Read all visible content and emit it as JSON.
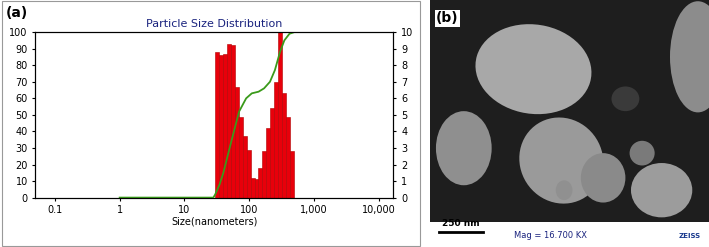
{
  "chart_data": {
    "type": "bar",
    "title": "Particle Size Distribution",
    "x_label": "Size(nanometers)",
    "annotations": [
      "(a)"
    ],
    "log": "x",
    "grid": false,
    "color": "#e8000b",
    "bins": [
      30,
      34.5,
      39.7,
      45.6,
      52.5,
      60.3,
      69.4,
      79.8,
      91.8,
      105.5,
      121.4,
      139.6,
      160.5,
      184.6,
      212.3,
      244.1,
      280.7,
      322.8,
      371.3,
      427,
      491
    ],
    "values": [
      88,
      86,
      87,
      93,
      92,
      67,
      49,
      37,
      29,
      12,
      11,
      18,
      28,
      42,
      54,
      70,
      100,
      63,
      49,
      28
    ],
    "series": [
      {
        "type": "line",
        "color": "#3a9a1a",
        "x": [
          1,
          10,
          28,
          30,
          35,
          40,
          50,
          60,
          70,
          90,
          110,
          140,
          170,
          210,
          250,
          300,
          350,
          420,
          500,
          1000,
          10000
        ],
        "values": [
          0,
          0,
          0,
          2,
          8,
          15,
          30,
          42,
          52,
          60,
          63,
          64,
          66,
          70,
          77,
          88,
          95,
          99,
          100,
          100,
          100
        ]
      }
    ],
    "xlim": [
      0.05,
      17000
    ],
    "xticks": [
      0.1,
      1,
      10,
      100,
      {
        "value": 1000,
        "label": "1,000"
      },
      {
        "value": 10000,
        "label": "10,000"
      }
    ],
    "ylim": [
      0,
      100
    ],
    "yticks": [
      0,
      10,
      20,
      30,
      40,
      50,
      60,
      70,
      80,
      90,
      100
    ],
    "y2lim": [
      0,
      10
    ],
    "y2ticks": [
      0,
      1,
      2,
      3,
      4,
      5,
      6,
      7,
      8,
      9,
      10
    ]
  },
  "image": {
    "label": "(b)",
    "scale_bar": "250 nm",
    "magnification": "Mag = 16.700 KX",
    "logo": "ZEISS"
  }
}
